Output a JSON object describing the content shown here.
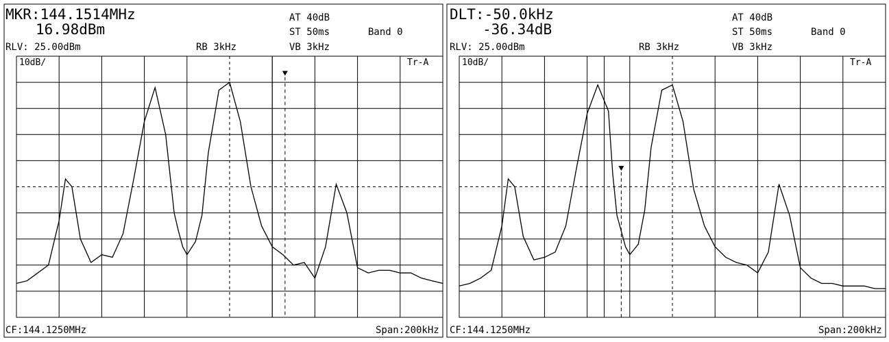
{
  "panels": [
    {
      "id": "left",
      "readout_line1": "MKR:144.1514MHz",
      "readout_line2": "16.98dBm",
      "at": "AT 40dB",
      "st": "ST 50ms",
      "band": "Band 0",
      "rlv": "RLV: 25.00dBm",
      "rb": "RB 3kHz",
      "vb": "VB 3kHz",
      "scale": "10dB/",
      "trace": "Tr-A",
      "cf": "CF:144.1250MHz",
      "span": "Span:200kHz"
    },
    {
      "id": "right",
      "readout_line1": "DLT:-50.0kHz",
      "readout_line2": "-36.34dB",
      "at": "AT 40dB",
      "st": "ST 50ms",
      "band": "Band 0",
      "rlv": "RLV: 25.00dBm",
      "rb": "RB 3kHz",
      "vb": "VB 3kHz",
      "scale": "10dB/",
      "trace": "Tr-A",
      "cf": "CF:144.1250MHz",
      "span": "Span:200kHz"
    }
  ],
  "chart_data": [
    {
      "type": "line",
      "title": "",
      "x_unit": "kHz offset from CF",
      "xlim": [
        -100,
        100
      ],
      "ylim": [
        -75,
        25
      ],
      "y_divisions": 10,
      "x_divisions": 10,
      "grid": true,
      "dashed_center_lines": true,
      "x": [
        -100,
        -95,
        -90,
        -85,
        -80,
        -77,
        -74,
        -70,
        -65,
        -60,
        -55,
        -50,
        -45,
        -40,
        -35,
        -30,
        -28,
        -26,
        -24,
        -22,
        -20,
        -16,
        -13,
        -10,
        -5,
        0,
        5,
        10,
        15,
        20,
        25,
        30,
        35,
        40,
        45,
        50,
        55,
        60,
        65,
        70,
        75,
        80,
        85,
        90,
        95,
        100
      ],
      "y": [
        -62,
        -61,
        -58,
        -55,
        -38,
        -22,
        -25,
        -45,
        -54,
        -51,
        -52,
        -43,
        -22,
        0,
        13,
        -5,
        -20,
        -35,
        -42,
        -48,
        -51,
        -46,
        -36,
        -12,
        12,
        15,
        0,
        -25,
        -40,
        -48,
        -51,
        -55,
        -54,
        -60,
        -48,
        -24,
        -35,
        -56,
        -58,
        -57,
        -57,
        -58,
        -58,
        -60,
        -61,
        -62
      ],
      "marker": {
        "x": 26,
        "y": 16.98,
        "label": "MKR"
      },
      "reference_line_x": 20
    },
    {
      "type": "line",
      "title": "",
      "x_unit": "kHz offset from CF",
      "xlim": [
        -100,
        100
      ],
      "ylim": [
        -75,
        25
      ],
      "y_divisions": 10,
      "x_divisions": 10,
      "grid": true,
      "dashed_center_lines": true,
      "x": [
        -100,
        -95,
        -90,
        -85,
        -80,
        -77,
        -74,
        -70,
        -65,
        -60,
        -55,
        -50,
        -45,
        -40,
        -35,
        -30,
        -28,
        -26,
        -24,
        -22,
        -20,
        -16,
        -13,
        -10,
        -5,
        0,
        5,
        10,
        15,
        20,
        25,
        30,
        35,
        40,
        45,
        50,
        55,
        60,
        65,
        70,
        75,
        80,
        85,
        90,
        95,
        100
      ],
      "y": [
        -63,
        -62,
        -60,
        -57,
        -40,
        -22,
        -25,
        -44,
        -53,
        -52,
        -50,
        -40,
        -18,
        3,
        14,
        4,
        -20,
        -36,
        -42,
        -48,
        -51,
        -47,
        -34,
        -10,
        12,
        14,
        0,
        -26,
        -40,
        -48,
        -52,
        -54,
        -55,
        -58,
        -50,
        -24,
        -36,
        -56,
        -60,
        -62,
        -62,
        -63,
        -63,
        -63,
        -64,
        -64
      ],
      "marker": {
        "x": -24,
        "y": -19.4,
        "label": "DLT",
        "delta_khz": -50.0,
        "delta_db": -36.34
      },
      "reference_line_x": -32
    }
  ]
}
